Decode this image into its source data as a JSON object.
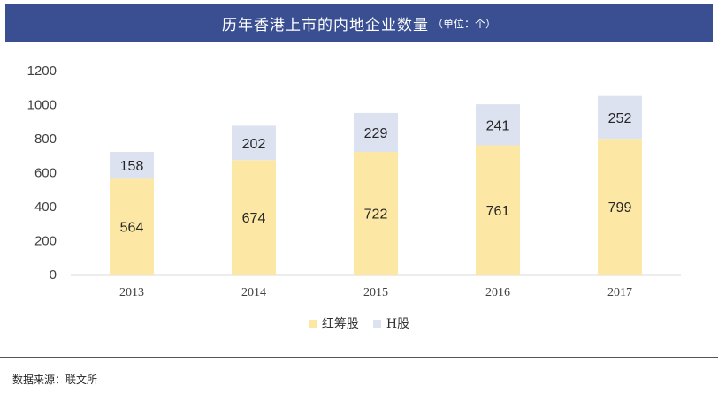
{
  "header": {
    "title": "历年香港上市的内地企业数量",
    "unit": "（单位：个）"
  },
  "chart_data": {
    "type": "bar",
    "stacked": true,
    "categories": [
      "2013",
      "2014",
      "2015",
      "2016",
      "2017"
    ],
    "series": [
      {
        "name": "红筹股",
        "values": [
          564,
          674,
          722,
          761,
          799
        ],
        "color": "#fce8a4"
      },
      {
        "name": "H股",
        "values": [
          158,
          202,
          229,
          241,
          252
        ],
        "color": "#dde2f1"
      }
    ],
    "ylim": [
      0,
      1200
    ],
    "yticks": [
      0,
      200,
      400,
      600,
      800,
      1000,
      1200
    ],
    "grid": false,
    "legend_position": "bottom"
  },
  "source": "数据来源：联文所",
  "colors": {
    "title_bar": "#3a4f91",
    "axis": "#d9d9d9"
  }
}
